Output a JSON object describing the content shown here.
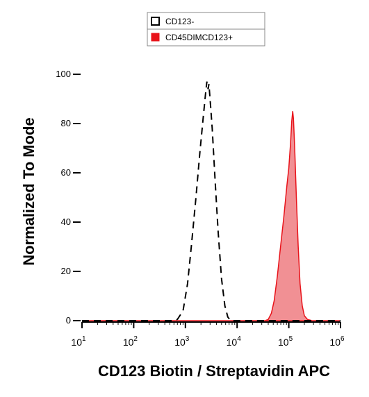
{
  "chart_data": {
    "type": "area",
    "xlabel": "CD123 Biotin / Streptavidin APC",
    "ylabel": "Normalized To Mode",
    "x_scale": "log",
    "xlim": [
      10,
      1000000
    ],
    "ylim": [
      0,
      100
    ],
    "x_ticks": [
      {
        "base": "10",
        "exp": "1",
        "value": 10
      },
      {
        "base": "10",
        "exp": "2",
        "value": 100
      },
      {
        "base": "10",
        "exp": "3",
        "value": 1000
      },
      {
        "base": "10",
        "exp": "4",
        "value": 10000
      },
      {
        "base": "10",
        "exp": "5",
        "value": 100000
      },
      {
        "base": "10",
        "exp": "6",
        "value": 1000000
      }
    ],
    "y_ticks": [
      "0",
      "20",
      "40",
      "60",
      "80",
      "100"
    ],
    "grid": false,
    "legend_position": "top-center",
    "series": [
      {
        "name": "CD123-",
        "style": "dashed-outline",
        "stroke": "#000000",
        "fill": "none",
        "points": [
          [
            10,
            0
          ],
          [
            600,
            0
          ],
          [
            700,
            0.5
          ],
          [
            900,
            4
          ],
          [
            1100,
            15
          ],
          [
            1300,
            30
          ],
          [
            1600,
            50
          ],
          [
            1900,
            68
          ],
          [
            2200,
            82
          ],
          [
            2450,
            92
          ],
          [
            2600,
            97
          ],
          [
            2750,
            94
          ],
          [
            2850,
            96
          ],
          [
            3000,
            90
          ],
          [
            3300,
            78
          ],
          [
            3800,
            55
          ],
          [
            4300,
            36
          ],
          [
            5000,
            17
          ],
          [
            5800,
            6
          ],
          [
            6600,
            1.5
          ],
          [
            7500,
            0
          ],
          [
            1000000,
            0
          ]
        ]
      },
      {
        "name": "CD45DIMCD123+",
        "style": "filled",
        "stroke": "#e8131a",
        "fill": "#f08a8e",
        "points": [
          [
            10,
            0
          ],
          [
            35000,
            0
          ],
          [
            40000,
            0.5
          ],
          [
            46000,
            3
          ],
          [
            52000,
            8
          ],
          [
            60000,
            18
          ],
          [
            70000,
            31
          ],
          [
            80000,
            42
          ],
          [
            92000,
            55
          ],
          [
            100000,
            62
          ],
          [
            108000,
            72
          ],
          [
            114000,
            81
          ],
          [
            119000,
            85
          ],
          [
            123000,
            82
          ],
          [
            130000,
            70
          ],
          [
            140000,
            50
          ],
          [
            152000,
            30
          ],
          [
            165000,
            15
          ],
          [
            182000,
            6
          ],
          [
            200000,
            2
          ],
          [
            230000,
            0.5
          ],
          [
            280000,
            0
          ],
          [
            1000000,
            0
          ]
        ]
      }
    ]
  }
}
